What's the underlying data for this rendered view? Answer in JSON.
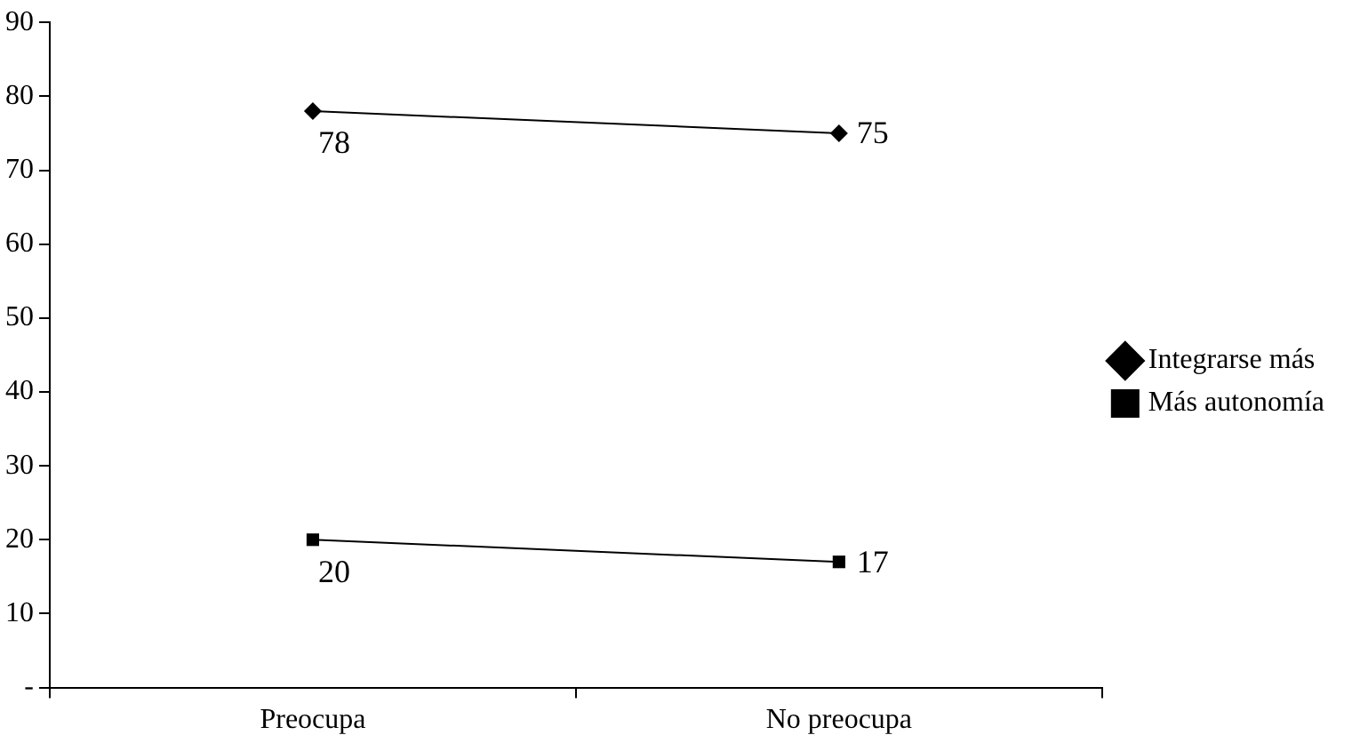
{
  "chart_data": {
    "type": "line",
    "categories": [
      "Preocupa",
      "No preocupa"
    ],
    "series": [
      {
        "name": "Integrarse más",
        "color": "#000000",
        "values": [
          78,
          75
        ],
        "marker": "diamond"
      },
      {
        "name": "Más autonomía",
        "color": "#000000",
        "values": [
          20,
          17
        ],
        "marker": "square"
      }
    ],
    "ylim": [
      0,
      90
    ],
    "yticks": [
      {
        "value": 0,
        "label": "-"
      },
      10,
      20,
      30,
      40,
      50,
      60,
      70,
      80,
      90
    ],
    "grid": false,
    "legend": "right",
    "data_labels": true,
    "line_style": "solid"
  }
}
